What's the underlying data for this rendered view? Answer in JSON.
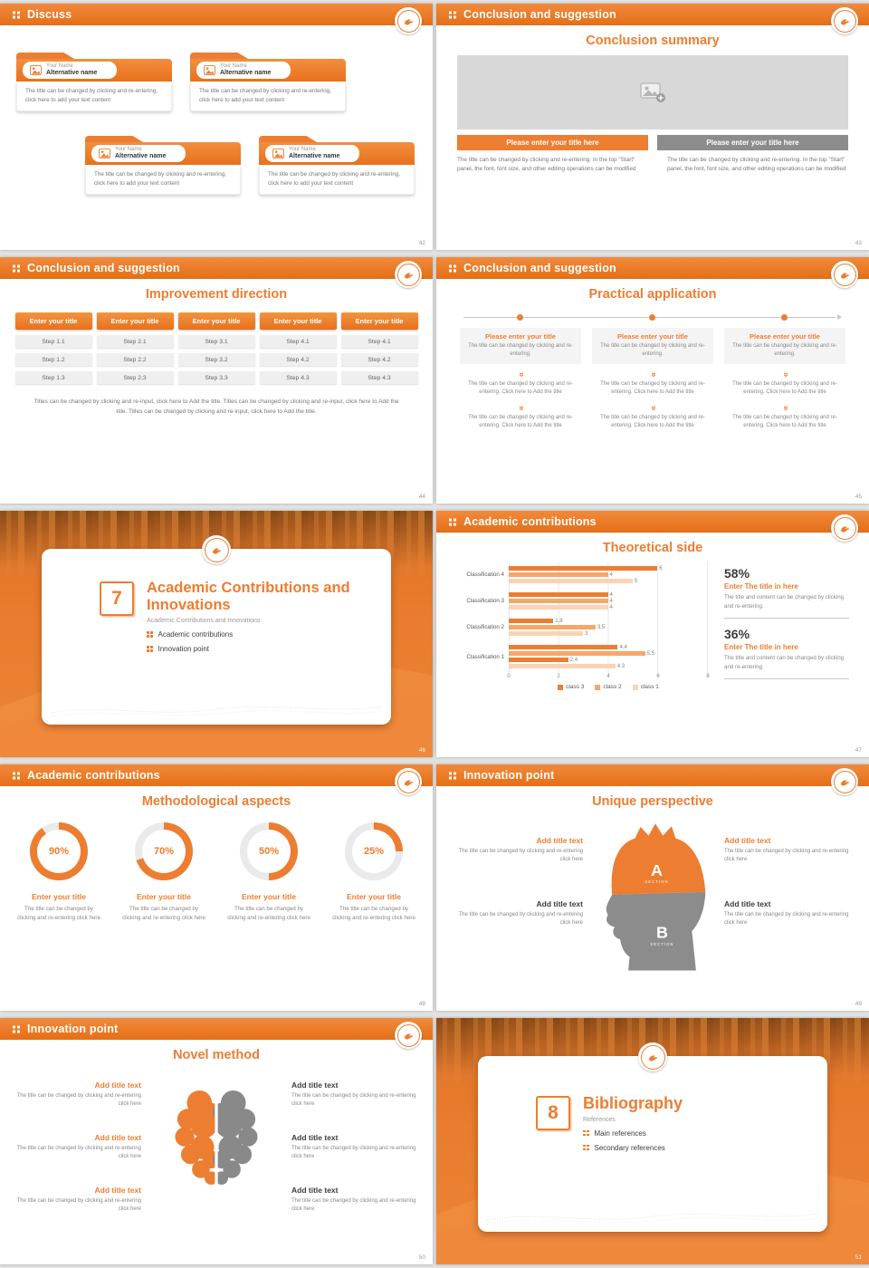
{
  "theme": {
    "orange": "#ED7D31",
    "orange_dark": "#E06A1F",
    "orange_mid": "#F5A869",
    "orange_pale": "#FAD3B5",
    "gray_button": "#8C8C8C",
    "text_dark": "#404040",
    "text_gray": "#808080"
  },
  "slides": {
    "s42": {
      "page": "42",
      "header": "Discuss",
      "card": {
        "name_label": "Your Name",
        "alt_label": "Alternative name",
        "body": "The title can be changed by clicking and re-entering, click here to add your text content"
      }
    },
    "s43": {
      "page": "43",
      "header": "Conclusion and suggestion",
      "title": "Conclusion summary",
      "button_left": "Please enter your title here",
      "button_right": "Please enter your title here",
      "body": "The title can be changed by clicking and re-entering. In the top \"Start\" panel, the font, font size, and other editing operations can be modified"
    },
    "s44": {
      "page": "44",
      "header": "Conclusion and suggestion",
      "title": "Improvement direction",
      "button": "Enter your title",
      "columns": [
        [
          "Step 1.1",
          "Step 1.2",
          "Step 1.3"
        ],
        [
          "Step 2.1",
          "Step 2.2",
          "Step 2.3"
        ],
        [
          "Step 3.1",
          "Step 3.2",
          "Step 3.3"
        ],
        [
          "Step 4.1",
          "Step 4.2",
          "Step 4.3"
        ],
        [
          "Step 4.1",
          "Step 4.2",
          "Step 4.3"
        ]
      ],
      "footer": "Titles can be changed by clicking and re-input, click here to Add the title. Titles can be changed by clicking and re-input, click here to Add the title. Titles can be changed by clicking and re-input, click here to Add the title."
    },
    "s45": {
      "page": "45",
      "header": "Conclusion and suggestion",
      "title": "Practical application",
      "col_title": "Please enter your title",
      "text_top": "The title can be changed by clicking and re-entering.",
      "text_mid": "The title can be changed by clicking and re-entering. Click here to Add the title",
      "text_bottom": "The title can be changed by clicking and re-entering. Click here to Add the title"
    },
    "s46": {
      "page": "46",
      "number": "7",
      "title": "Academic Contributions and Innovations",
      "subtitle": "Academic Contributions and Innovations",
      "bullets": [
        "Academic contributions",
        "Innovation point"
      ]
    },
    "s47": {
      "page": "47",
      "header": "Academic contributions",
      "title": "Theoretical side",
      "chart_data": {
        "type": "bar",
        "orientation": "horizontal",
        "xlim": [
          0,
          8
        ],
        "xticks": [
          "0",
          "2",
          "4",
          "6",
          "8"
        ],
        "colors": {
          "class 1": "#FAD3B5",
          "class 2": "#F5A869",
          "class 3": "#ED7D31"
        },
        "legend": [
          "class 3",
          "class 2",
          "class 1"
        ],
        "rows": [
          {
            "category": "Classification 4",
            "bars": [
              {
                "value": 6,
                "series": "class 3"
              },
              {
                "value": 4,
                "series": "class 2"
              },
              {
                "value": 5,
                "series": "class 1"
              }
            ]
          },
          {
            "category": "Classification 3",
            "bars": [
              {
                "value": 4,
                "series": "class 3"
              },
              {
                "value": 4,
                "series": "class 2"
              },
              {
                "value": 4,
                "series": "class 1"
              }
            ]
          },
          {
            "category": "Classification 2",
            "bars": [
              {
                "value": 1.8,
                "series": "class 3"
              },
              {
                "value": 3.5,
                "series": "class 2"
              },
              {
                "value": 3,
                "series": "class 1"
              }
            ]
          },
          {
            "category": "Classification 1",
            "bars": [
              {
                "value": 4.4,
                "series": "class 3"
              },
              {
                "value": 5.5,
                "series": "class 2"
              },
              {
                "value": 2.4,
                "series": "class 3"
              },
              {
                "value": 4.3,
                "series": "class 1"
              }
            ]
          }
        ]
      },
      "stats": [
        {
          "value": "58%",
          "title": "Enter The title in here",
          "desc": "The title and content can be changed by clicking and re-entering."
        },
        {
          "value": "36%",
          "title": "Enter The title in here",
          "desc": "The title and content can be changed by clicking and re-entering."
        }
      ]
    },
    "s48": {
      "page": "48",
      "header": "Academic contributions",
      "title": "Methodological aspects",
      "item_title": "Enter your title",
      "item_desc": "The title can be changed by clicking and re-entering click here",
      "items": [
        {
          "pct": 90,
          "pct_label": "90%"
        },
        {
          "pct": 70,
          "pct_label": "70%"
        },
        {
          "pct": 50,
          "pct_label": "50%"
        },
        {
          "pct": 25,
          "pct_label": "25%"
        }
      ]
    },
    "s49": {
      "page": "49",
      "header": "Innovation point",
      "title": "Unique perspective",
      "item_title": "Add title text",
      "item_desc": "The title can be changed by clicking and re-entering click here",
      "section_a": "A",
      "section_b": "B",
      "section_label": "SECTION"
    },
    "s50": {
      "page": "50",
      "header": "Innovation point",
      "title": "Novel method",
      "item_title": "Add title text",
      "item_desc": "The title can be changed by clicking and re-entering click here"
    },
    "s51": {
      "page": "51",
      "number": "8",
      "title": "Bibliography",
      "subtitle": "References",
      "bullets": [
        "Main references",
        "Secondary references"
      ]
    }
  }
}
